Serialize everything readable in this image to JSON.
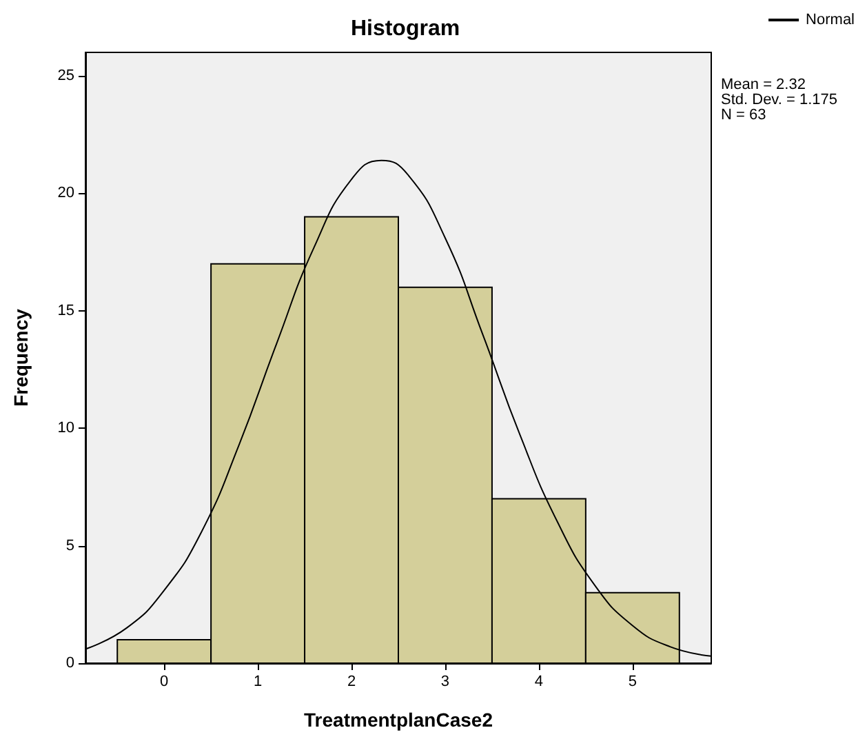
{
  "chart_data": {
    "type": "histogram",
    "title": "Histogram",
    "xlabel": "TreatmentplanCase2",
    "ylabel": "Frequency",
    "bins": [
      -0.5,
      0.5,
      1.5,
      2.5,
      3.5,
      4.5,
      5.5
    ],
    "values": [
      1,
      17,
      19,
      16,
      7,
      3
    ],
    "color": "#d4cf9a",
    "series": [
      {
        "name": "Normal",
        "type": "line",
        "color": "#000000",
        "x": [
          -0.84,
          -0.4,
          0,
          0.4,
          0.8,
          1.2,
          1.6,
          2.0,
          2.32,
          2.6,
          3.0,
          3.4,
          3.8,
          4.2,
          4.6,
          5.0,
          5.4,
          5.84
        ],
        "values": [
          0.6,
          1.5,
          3.1,
          5.6,
          9.3,
          13.6,
          17.7,
          20.6,
          21.4,
          20.8,
          18.1,
          14.0,
          9.7,
          6.0,
          3.3,
          1.6,
          0.7,
          0.3
        ]
      }
    ],
    "xlim": [
      -0.84,
      5.84
    ],
    "xticks": [
      0,
      1,
      2,
      3,
      4,
      5
    ],
    "ylim": [
      0,
      26
    ],
    "yticks": [
      0,
      5,
      10,
      15,
      20,
      25
    ],
    "annotations": [
      "Mean = 2.32",
      "Std. Dev. = 1.175",
      "N = 63"
    ],
    "legend": "top right",
    "grid": false,
    "marker": "none",
    "line_style": "solid"
  }
}
